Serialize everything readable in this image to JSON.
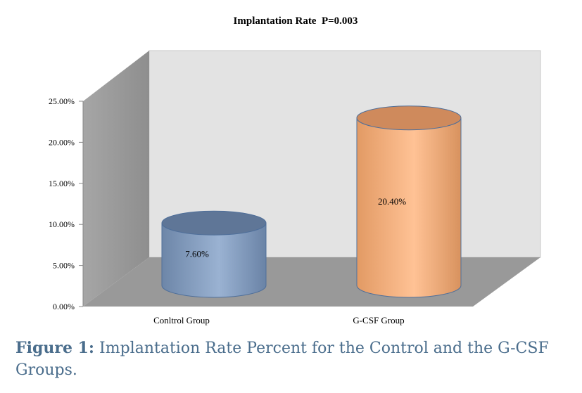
{
  "chart_data": {
    "type": "bar",
    "title": "Implantation Rate  P=0.003",
    "categories": [
      "Conltrol Group",
      "G-CSF Group"
    ],
    "values": [
      7.6,
      20.4
    ],
    "data_labels": [
      "7.60%",
      "20.40%"
    ],
    "ylim": [
      0,
      25
    ],
    "yticks": [
      "0.00%",
      "5.00%",
      "10.00%",
      "15.00%",
      "20.00%",
      "25.00%"
    ],
    "xlabel": "",
    "ylabel": "",
    "style": "3d-cylinder",
    "colors": [
      "#8fa8c8",
      "#fdbe8c"
    ],
    "grid": false
  },
  "caption": {
    "label": "Figure 1:",
    "text": "Implantation Rate Percent for the Control and the G-CSF Groups."
  }
}
